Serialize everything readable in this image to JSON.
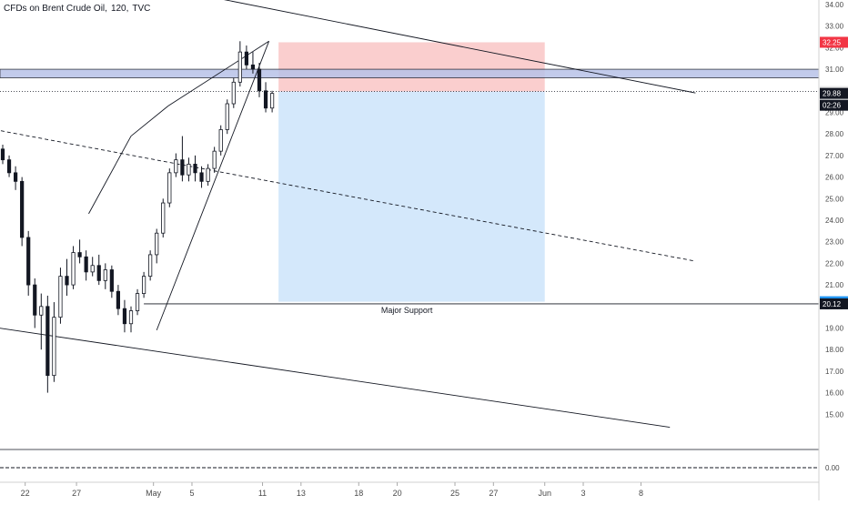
{
  "header": {
    "symbol_title": "CFDs on Brent Crude Oil",
    "interval": "120",
    "exchange": "TVC"
  },
  "colors": {
    "candle": "#131722",
    "stop_zone": "#f9c6c6",
    "target_zone": "#cfe6fb",
    "resistance_band": "#b8c3e8",
    "badge_stop": "#f23645",
    "badge_target": "#2196f3",
    "badge_dark": "#131722",
    "axis_text": "#4a4a4a"
  },
  "chart_data": {
    "type": "candlestick",
    "ylim": [
      14,
      34
    ],
    "y_ticks": [
      15,
      16,
      17,
      18,
      19,
      20,
      21,
      22,
      23,
      24,
      25,
      26,
      27,
      28,
      29,
      30,
      31,
      32,
      33,
      34
    ],
    "zero_tick": "0.00",
    "x_ticks": [
      {
        "label": "22",
        "bar": 3.5
      },
      {
        "label": "27",
        "bar": 11.5
      },
      {
        "label": "May",
        "bar": 23.5
      },
      {
        "label": "5",
        "bar": 29.5
      },
      {
        "label": "11",
        "bar": 40.5
      },
      {
        "label": "13",
        "bar": 46.5
      },
      {
        "label": "18",
        "bar": 55.5
      },
      {
        "label": "20",
        "bar": 61.5
      },
      {
        "label": "25",
        "bar": 70.5
      },
      {
        "label": "27",
        "bar": 76.5
      },
      {
        "label": "Jun",
        "bar": 84.5
      },
      {
        "label": "3",
        "bar": 90.5
      },
      {
        "label": "8",
        "bar": 99.5
      }
    ],
    "series": [
      {
        "ohlc": [
          [
            27.3,
            27.5,
            26.6,
            26.8
          ],
          [
            26.8,
            27.0,
            26.0,
            26.2
          ],
          [
            26.2,
            26.5,
            25.4,
            25.8
          ],
          [
            25.8,
            26.0,
            22.8,
            23.2
          ],
          [
            23.2,
            23.5,
            20.5,
            21.0
          ],
          [
            21.0,
            21.3,
            19.0,
            19.6
          ],
          [
            19.6,
            20.6,
            18.0,
            20.0
          ],
          [
            20.0,
            20.5,
            16.0,
            16.8
          ],
          [
            16.8,
            20.2,
            16.5,
            19.5
          ],
          [
            19.5,
            21.8,
            19.2,
            21.4
          ],
          [
            21.4,
            22.2,
            20.5,
            21.0
          ],
          [
            21.0,
            22.8,
            20.8,
            22.5
          ],
          [
            22.5,
            23.1,
            22.0,
            22.3
          ],
          [
            22.3,
            22.6,
            21.2,
            21.6
          ],
          [
            21.6,
            22.3,
            21.4,
            21.9
          ],
          [
            21.9,
            22.4,
            21.0,
            21.2
          ],
          [
            21.2,
            22.0,
            20.8,
            21.7
          ],
          [
            21.7,
            21.9,
            20.4,
            20.7
          ],
          [
            20.7,
            21.0,
            19.6,
            19.9
          ],
          [
            19.9,
            20.3,
            18.8,
            19.2
          ],
          [
            19.2,
            20.0,
            18.8,
            19.8
          ],
          [
            19.8,
            20.8,
            19.6,
            20.6
          ],
          [
            20.6,
            21.6,
            20.4,
            21.4
          ],
          [
            21.4,
            22.6,
            21.2,
            22.4
          ],
          [
            22.4,
            23.6,
            22.0,
            23.4
          ],
          [
            23.4,
            25.0,
            23.2,
            24.8
          ],
          [
            24.8,
            26.4,
            24.6,
            26.2
          ],
          [
            26.2,
            27.1,
            26.0,
            26.8
          ],
          [
            26.8,
            27.9,
            25.8,
            26.1
          ],
          [
            26.1,
            26.9,
            25.8,
            26.6
          ],
          [
            26.6,
            27.0,
            25.8,
            26.2
          ],
          [
            26.2,
            26.5,
            25.5,
            25.8
          ],
          [
            25.8,
            26.6,
            25.6,
            26.4
          ],
          [
            26.4,
            27.4,
            26.2,
            27.2
          ],
          [
            27.2,
            28.4,
            27.0,
            28.2
          ],
          [
            28.2,
            29.6,
            28.0,
            29.4
          ],
          [
            29.4,
            30.6,
            29.2,
            30.4
          ],
          [
            30.4,
            32.3,
            30.2,
            31.8
          ],
          [
            31.8,
            32.1,
            31.0,
            31.2
          ],
          [
            31.2,
            31.8,
            30.8,
            31.0
          ],
          [
            31.0,
            31.3,
            29.7,
            30.0
          ],
          [
            30.0,
            30.4,
            29.0,
            29.2
          ],
          [
            29.2,
            30.0,
            29.0,
            29.88
          ]
        ]
      }
    ],
    "levels": {
      "stop_top": 32.25,
      "entry": 29.97,
      "target": 20.22,
      "support": 20.12,
      "last_price": 29.88,
      "resistance_low": 30.6,
      "resistance_high": 31.0
    },
    "position": {
      "bar_start": 43,
      "bar_end": 84.5
    },
    "trendlines": [
      {
        "style": "solid",
        "from": [
          13.4,
          24.3
        ],
        "to": [
          20,
          27.9
        ]
      },
      {
        "style": "solid",
        "from": [
          20,
          27.9
        ],
        "to": [
          25.8,
          29.3
        ]
      },
      {
        "style": "solid",
        "from": [
          25.8,
          29.3
        ],
        "to": [
          41.5,
          32.3
        ]
      },
      {
        "style": "solid",
        "from": [
          24,
          18.9
        ],
        "to": [
          41.5,
          32.3
        ]
      },
      {
        "style": "solid",
        "from": [
          18,
          35.2
        ],
        "to": [
          108,
          29.9
        ]
      },
      {
        "style": "solid",
        "from": [
          -12,
          19.5
        ],
        "to": [
          104,
          14.4
        ]
      },
      {
        "style": "dashed",
        "from": [
          -12,
          28.8
        ],
        "to": [
          108,
          22.1
        ]
      }
    ],
    "annotations": [
      {
        "text": "Major Support",
        "bar": 63,
        "price": 20.12
      }
    ],
    "current_time_label": "02:26"
  }
}
